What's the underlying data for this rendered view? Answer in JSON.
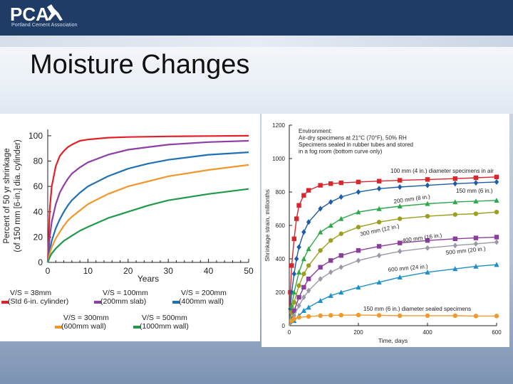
{
  "header": {
    "logo_text": "PCA",
    "logo_subtitle": "Portland Cement Association",
    "accent_color": "#1f3c66",
    "icon": "runner-logo-icon"
  },
  "slide": {
    "title": "Moisture Changes"
  },
  "chart_data": [
    {
      "type": "line",
      "xlabel": "Years",
      "ylabel": "Percent of 50 yr shrinkage (of 150 mm [6-in.] dia. cylinder)",
      "ylabel_lines": [
        "Percent of 50 yr shrinkage",
        "(of 150 mm [6-in.] dia. cylinder)"
      ],
      "xlim": [
        0,
        50
      ],
      "ylim": [
        0,
        105
      ],
      "x_ticks": [
        0,
        10,
        20,
        30,
        40,
        50
      ],
      "y_ticks": [
        0,
        20,
        40,
        60,
        80,
        100
      ],
      "grid": false,
      "legend_position": "bottom",
      "series": [
        {
          "name": "V/S = 38mm (Std 6-in. cylinder)",
          "legend_lines": [
            "V/S = 38mm",
            "(Std 6-in. cylinder)"
          ],
          "color": "#e32028",
          "x": [
            0,
            0.5,
            1,
            2,
            3,
            4,
            5,
            6,
            8,
            10,
            15,
            20,
            30,
            40,
            50
          ],
          "y": [
            0,
            42,
            60,
            76,
            84,
            88,
            91,
            93,
            96,
            97,
            98.5,
            99,
            99.5,
            99.8,
            100
          ]
        },
        {
          "name": "V/S = 100mm (200mm slab)",
          "legend_lines": [
            "V/S = 100mm",
            "(200mm slab)"
          ],
          "color": "#8e3ea5",
          "x": [
            0,
            0.5,
            1,
            2,
            3,
            4,
            5,
            6,
            8,
            10,
            15,
            20,
            25,
            30,
            40,
            50
          ],
          "y": [
            0,
            20,
            32,
            46,
            55,
            61,
            66,
            70,
            75,
            79,
            85,
            89,
            91,
            93,
            95,
            96
          ]
        },
        {
          "name": "V/S = 200mm (400mm wall)",
          "legend_lines": [
            "V/S = 200mm",
            "(400mm wall)"
          ],
          "color": "#1f70b5",
          "x": [
            0,
            0.5,
            1,
            2,
            3,
            4,
            5,
            6,
            8,
            10,
            15,
            20,
            25,
            30,
            40,
            50
          ],
          "y": [
            0,
            10,
            17,
            27,
            34,
            40,
            45,
            49,
            55,
            60,
            68,
            74,
            78,
            81,
            85,
            87
          ]
        },
        {
          "name": "V/S = 300mm (600mm wall)",
          "legend_lines": [
            "V/S = 300mm",
            "(600mm wall)"
          ],
          "color": "#f0962a",
          "x": [
            0,
            0.5,
            1,
            2,
            3,
            4,
            5,
            6,
            8,
            10,
            15,
            20,
            25,
            30,
            40,
            50
          ],
          "y": [
            0,
            7,
            12,
            19,
            24,
            29,
            33,
            36,
            41,
            46,
            54,
            60,
            64,
            68,
            73,
            77
          ]
        },
        {
          "name": "V/S = 500mm (1000mm wall)",
          "legend_lines": [
            "V/S = 500mm",
            "(1000mm wall)"
          ],
          "color": "#1f9a4a",
          "x": [
            0,
            0.5,
            1,
            2,
            3,
            4,
            5,
            6,
            8,
            10,
            15,
            20,
            25,
            30,
            40,
            50
          ],
          "y": [
            0,
            4,
            7,
            11,
            14,
            17,
            19,
            21,
            25,
            28,
            35,
            40,
            45,
            49,
            54,
            58
          ]
        }
      ]
    },
    {
      "type": "scatter",
      "xlabel": "Time, days",
      "ylabel": "Shrinkage strain, millionths",
      "xlim": [
        0,
        600
      ],
      "ylim": [
        0,
        1200
      ],
      "x_ticks": [
        0,
        200,
        400,
        600
      ],
      "y_ticks": [
        0,
        200,
        400,
        600,
        800,
        1000,
        1200
      ],
      "grid": false,
      "annotation_lines": [
        "Environment:",
        "Air-dry specimens at 21°C (70°F), 50% RH",
        "Specimens sealed in rubber tubes and stored",
        "in a fog room (bottom curve only)"
      ],
      "curve_labels": [
        "100 mm (4 in.) diameter specimens in air",
        "150 mm (6 in.)",
        "200 mm (8 in.)",
        "300 mm (12 in.)",
        "400 mm (16 in.)",
        "500 mm (20 in.)",
        "600 mm (24 in.)",
        "150 mm (6 in.) diameter sealed specimens"
      ],
      "series": [
        {
          "name": "100 mm (4 in.)",
          "color": "#d8262c",
          "marker": "square",
          "x": [
            3,
            7,
            14,
            21,
            28,
            42,
            56,
            90,
            120,
            150,
            200,
            260,
            320,
            400,
            480,
            540,
            600
          ],
          "y": [
            200,
            360,
            520,
            640,
            720,
            780,
            810,
            840,
            850,
            855,
            860,
            865,
            870,
            875,
            880,
            885,
            890
          ]
        },
        {
          "name": "150 mm (6 in.)",
          "color": "#1d5ca8",
          "marker": "diamond",
          "x": [
            3,
            7,
            14,
            21,
            28,
            42,
            56,
            90,
            120,
            150,
            200,
            260,
            320,
            400,
            480,
            540,
            600
          ],
          "y": [
            100,
            200,
            310,
            400,
            470,
            560,
            620,
            700,
            740,
            770,
            800,
            820,
            830,
            840,
            850,
            855,
            860
          ]
        },
        {
          "name": "200 mm (8 in.)",
          "color": "#2ea84a",
          "marker": "triangle",
          "x": [
            7,
            14,
            28,
            42,
            56,
            90,
            120,
            150,
            200,
            260,
            320,
            400,
            480,
            540,
            600
          ],
          "y": [
            120,
            200,
            320,
            400,
            460,
            560,
            600,
            640,
            680,
            700,
            715,
            730,
            740,
            745,
            750
          ]
        },
        {
          "name": "300 mm (12 in.)",
          "color": "#9aa01e",
          "marker": "circle",
          "x": [
            7,
            14,
            28,
            42,
            56,
            90,
            120,
            150,
            200,
            260,
            320,
            400,
            480,
            540,
            600
          ],
          "y": [
            80,
            140,
            240,
            310,
            360,
            450,
            510,
            550,
            590,
            620,
            640,
            655,
            665,
            670,
            680
          ]
        },
        {
          "name": "400 mm (16 in.)",
          "color": "#8a3d9c",
          "marker": "square",
          "x": [
            14,
            28,
            42,
            56,
            90,
            120,
            150,
            200,
            260,
            320,
            400,
            480,
            540,
            600
          ],
          "y": [
            90,
            170,
            230,
            280,
            350,
            390,
            420,
            450,
            475,
            495,
            510,
            520,
            525,
            530
          ]
        },
        {
          "name": "500 mm (20 in.)",
          "color": "#9a9aa6",
          "marker": "diamond",
          "x": [
            14,
            28,
            42,
            56,
            90,
            120,
            150,
            200,
            260,
            320,
            400,
            480,
            540,
            600
          ],
          "y": [
            60,
            120,
            170,
            210,
            280,
            320,
            350,
            390,
            420,
            445,
            465,
            480,
            490,
            500
          ]
        },
        {
          "name": "600 mm (24 in.)",
          "color": "#1e8fc8",
          "marker": "triangle",
          "x": [
            14,
            28,
            42,
            56,
            90,
            120,
            150,
            200,
            260,
            320,
            400,
            480,
            540,
            600
          ],
          "y": [
            30,
            60,
            90,
            110,
            150,
            180,
            200,
            230,
            260,
            290,
            320,
            340,
            355,
            365
          ]
        },
        {
          "name": "150 mm (6 in.) sealed",
          "color": "#f09a2a",
          "marker": "circle",
          "x": [
            7,
            14,
            28,
            56,
            90,
            120,
            150,
            200,
            260,
            320,
            400,
            480,
            540,
            600
          ],
          "y": [
            30,
            40,
            50,
            55,
            60,
            62,
            63,
            64,
            62,
            60,
            60,
            60,
            58,
            58
          ]
        }
      ]
    }
  ]
}
